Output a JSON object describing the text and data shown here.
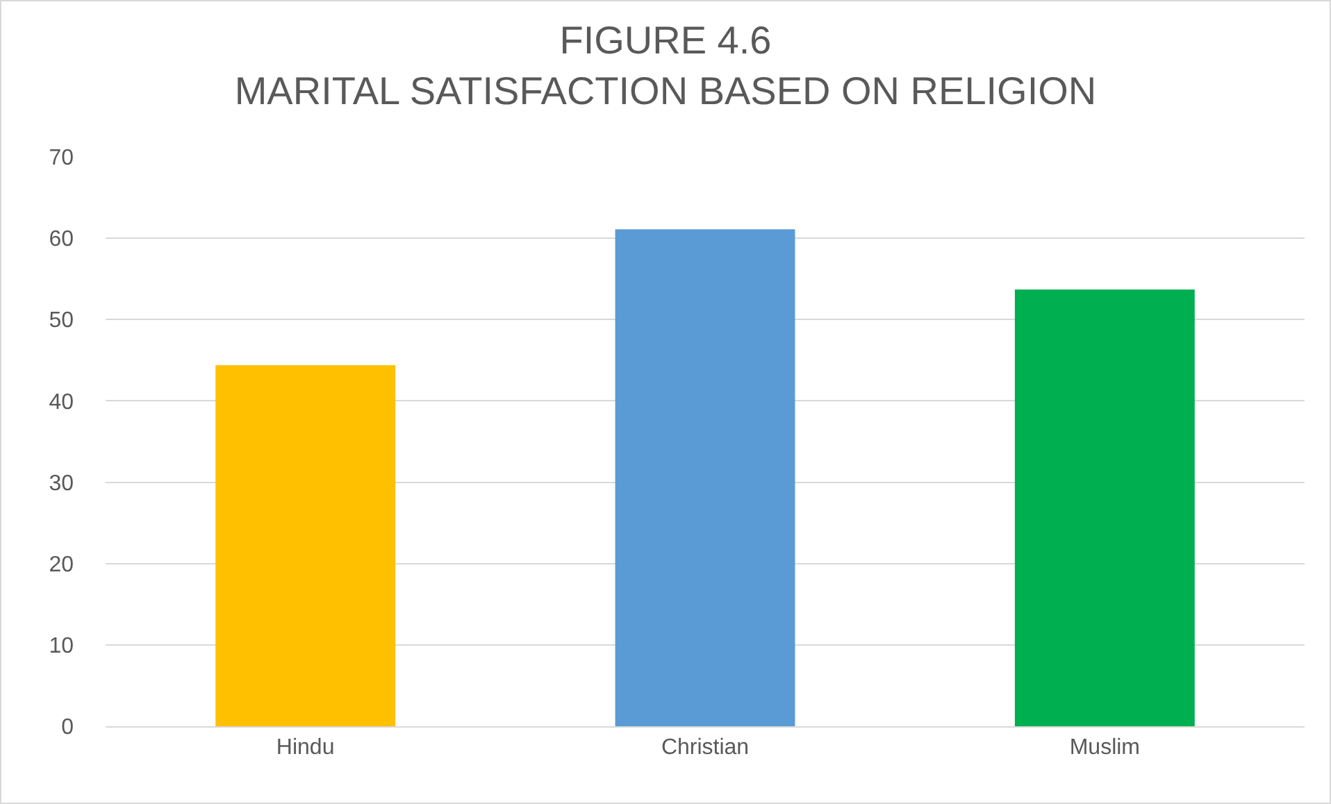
{
  "chart_data": {
    "type": "bar",
    "title": "FIGURE 4.6\nMARITAL SATISFACTION BASED ON RELIGION",
    "categories": [
      "Hindu",
      "Christian",
      "Muslim"
    ],
    "values": [
      44.4,
      61.1,
      53.7
    ],
    "colors": [
      "#ffc000",
      "#5b9bd5",
      "#00b050"
    ],
    "ylim": [
      0,
      70
    ],
    "yticks": [
      0,
      10,
      20,
      30,
      40,
      50,
      60,
      70
    ],
    "grid": "y",
    "legend": false
  }
}
